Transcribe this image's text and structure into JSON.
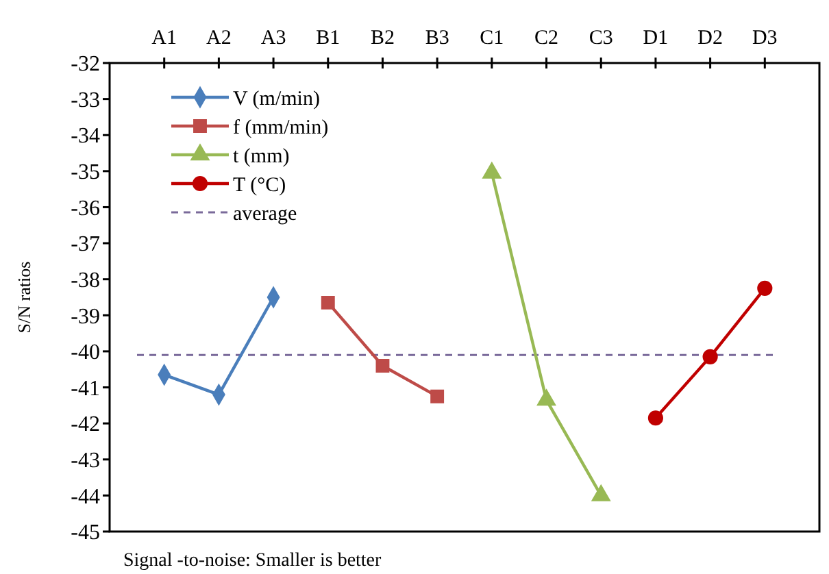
{
  "chart_data": {
    "type": "line",
    "ylabel": "S/N ratios",
    "categories": [
      "A1",
      "A2",
      "A3",
      "B1",
      "B2",
      "B3",
      "C1",
      "C2",
      "C3",
      "D1",
      "D2",
      "D3"
    ],
    "ylim": [
      -45,
      -32
    ],
    "yticks": [
      -45,
      -44,
      -43,
      -42,
      -41,
      -40,
      -39,
      -38,
      -37,
      -36,
      -35,
      -34,
      -33,
      -32
    ],
    "series": [
      {
        "name": "V (m/min)",
        "color": "#4a7ebb",
        "marker": "diamond",
        "values": [
          -40.65,
          -41.2,
          -38.5,
          null,
          null,
          null,
          null,
          null,
          null,
          null,
          null,
          null
        ]
      },
      {
        "name": "f (mm/min)",
        "color": "#be4b48",
        "marker": "square",
        "values": [
          null,
          null,
          null,
          -38.65,
          -40.4,
          -41.25,
          null,
          null,
          null,
          null,
          null,
          null
        ]
      },
      {
        "name": "t (mm)",
        "color": "#98b954",
        "marker": "triangle",
        "values": [
          null,
          null,
          null,
          null,
          null,
          null,
          -35.05,
          -41.35,
          -44.0,
          null,
          null,
          null
        ]
      },
      {
        "name": "T   (°C)",
        "color": "#c00000",
        "marker": "circle",
        "values": [
          null,
          null,
          null,
          null,
          null,
          null,
          null,
          null,
          null,
          -41.85,
          -40.15,
          -38.25
        ]
      }
    ],
    "ref_lines": [
      {
        "axis": "y",
        "value": -40.1,
        "label": "average",
        "color": "#7a6a9a",
        "line_style": "dashed"
      }
    ],
    "legend": "top left",
    "grid": false,
    "annotations": [
      "Signal -to-noise: Smaller is better"
    ]
  }
}
